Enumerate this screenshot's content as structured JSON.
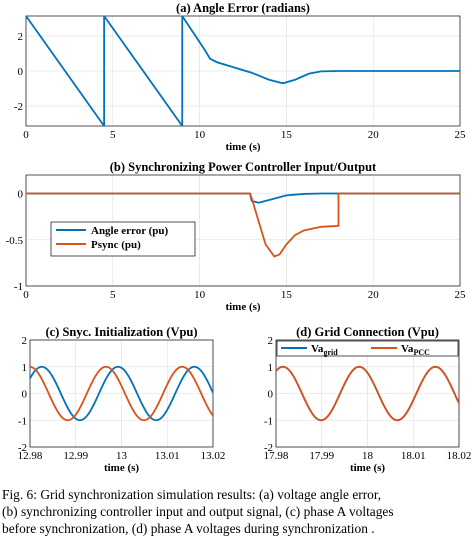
{
  "colors": {
    "blue": "#0072bd",
    "orange": "#d95319"
  },
  "chart_data": [
    {
      "id": "a",
      "type": "line",
      "title": "(a) Angle Error (radians)",
      "xlabel": "time (s)",
      "xlim": [
        0,
        25
      ],
      "ylim": [
        -3.14,
        3.14
      ],
      "xticks": [
        "0",
        "5",
        "10",
        "15",
        "20",
        "25"
      ],
      "yticks": [
        "-2",
        "0",
        "2"
      ],
      "grid": true,
      "series": [
        {
          "color": "#0072bd",
          "points": [
            [
              0,
              3.14
            ],
            [
              4.5,
              -3.14
            ],
            [
              4.5,
              3.14
            ],
            [
              9,
              -3.14
            ],
            [
              9,
              3.14
            ],
            [
              10.3,
              1.2
            ],
            [
              10.6,
              0.7
            ],
            [
              11,
              0.5
            ],
            [
              12,
              0.2
            ],
            [
              13,
              -0.1
            ],
            [
              14,
              -0.5
            ],
            [
              14.8,
              -0.7
            ],
            [
              15.5,
              -0.5
            ],
            [
              16.3,
              -0.15
            ],
            [
              17,
              -0.02
            ],
            [
              18,
              0
            ],
            [
              25,
              0
            ]
          ]
        }
      ]
    },
    {
      "id": "b",
      "type": "line",
      "title": "(b) Synchronizing Power Controller Input/Output",
      "xlabel": "time (s)",
      "xlim": [
        0,
        25
      ],
      "ylim": [
        -1,
        0.2
      ],
      "xticks": [
        "0",
        "5",
        "10",
        "15",
        "20",
        "25"
      ],
      "yticks": [
        "-1",
        "-0.5",
        "0"
      ],
      "grid": true,
      "legend": {
        "position": "left",
        "entries": [
          "Angle error (pu)",
          "Psync (pu)"
        ]
      },
      "series": [
        {
          "name": "Angle error (pu)",
          "color": "#0072bd",
          "points": [
            [
              0,
              0
            ],
            [
              12.9,
              0
            ],
            [
              13,
              -0.08
            ],
            [
              13.4,
              -0.1
            ],
            [
              14,
              -0.07
            ],
            [
              15,
              -0.02
            ],
            [
              16,
              -0.005
            ],
            [
              17,
              0
            ],
            [
              25,
              0
            ]
          ]
        },
        {
          "name": "Psync (pu)",
          "color": "#d95319",
          "points": [
            [
              0,
              0
            ],
            [
              12.9,
              0
            ],
            [
              13,
              -0.05
            ],
            [
              13.4,
              -0.3
            ],
            [
              13.8,
              -0.55
            ],
            [
              14.3,
              -0.68
            ],
            [
              14.6,
              -0.66
            ],
            [
              15,
              -0.55
            ],
            [
              15.5,
              -0.45
            ],
            [
              16,
              -0.4
            ],
            [
              17,
              -0.36
            ],
            [
              18,
              -0.35
            ],
            [
              18,
              0
            ],
            [
              25,
              0
            ]
          ]
        }
      ]
    },
    {
      "id": "c",
      "type": "line",
      "title": "(c) Snyc. Initialization (Vpu)",
      "xlabel": "time (s)",
      "xlim": [
        12.98,
        13.02
      ],
      "ylim": [
        -2,
        2
      ],
      "xticks": [
        "12.98",
        "12.99",
        "13",
        "13.01",
        "13.02"
      ],
      "yticks": [
        "-2",
        "-1",
        "0",
        "1",
        "2"
      ],
      "grid": true,
      "series": [
        {
          "color": "#0072bd",
          "sine": {
            "amplitude": 1,
            "frequency": 60,
            "phase": 0.6
          }
        },
        {
          "color": "#d95319",
          "sine": {
            "amplitude": 1,
            "frequency": 60,
            "phase": 1.6
          }
        }
      ]
    },
    {
      "id": "d",
      "type": "line",
      "title": "(d) Grid Connection (Vpu)",
      "xlabel": "time (s)",
      "xlim": [
        17.98,
        18.02
      ],
      "ylim": [
        -2,
        2
      ],
      "xticks": [
        "17.98",
        "17.99",
        "18",
        "18.01",
        "18.02"
      ],
      "yticks": [
        "-2",
        "-1",
        "0",
        "1",
        "2"
      ],
      "grid": true,
      "legend": {
        "position": "top",
        "entries": [
          {
            "base": "Va",
            "sub": "grid"
          },
          {
            "base": "Va",
            "sub": "PCC"
          }
        ]
      },
      "series": [
        {
          "color": "#0072bd",
          "sine": {
            "amplitude": 1,
            "frequency": 60,
            "phase": 1.0
          }
        },
        {
          "color": "#d95319",
          "sine": {
            "amplitude": 1,
            "frequency": 60,
            "phase": 1.0
          }
        }
      ]
    }
  ],
  "caption": [
    "Fig. 6: Grid synchronization simulation results: (a) voltage angle error,",
    "(b) synchronizing controller input and output signal, (c) phase A voltages",
    "before synchronization, (d) phase A voltages during synchronization ."
  ]
}
